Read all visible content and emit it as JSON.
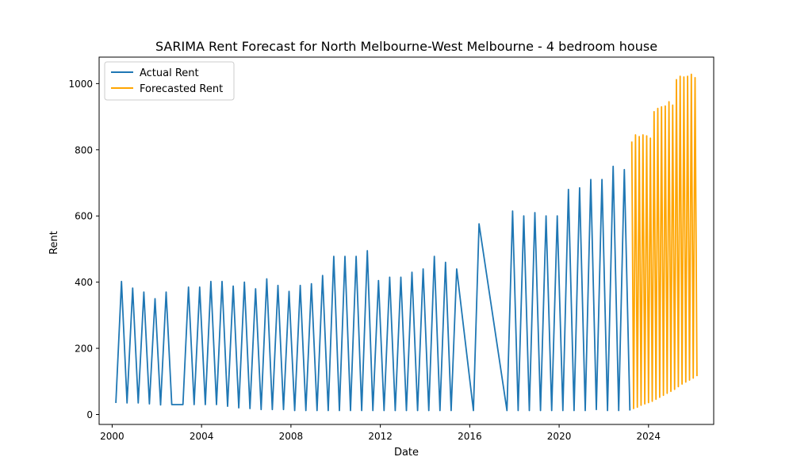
{
  "chart_data": {
    "type": "line",
    "title": "SARIMA Rent Forecast for North Melbourne-West Melbourne - 4 bedroom house",
    "xlabel": "Date",
    "ylabel": "Rent",
    "x_axis_type": "date",
    "xlim": [
      "1999-06-01",
      "2026-12-01"
    ],
    "ylim": [
      -30,
      1080
    ],
    "xticks": [
      "2000",
      "2004",
      "2008",
      "2012",
      "2016",
      "2020",
      "2024"
    ],
    "yticks": [
      0,
      200,
      400,
      600,
      800,
      1000
    ],
    "grid": false,
    "legend_position": "top-left",
    "series": [
      {
        "name": "Actual Rent",
        "color": "#1f77b4",
        "points": [
          [
            "2000-03-01",
            35
          ],
          [
            "2000-06-01",
            402
          ],
          [
            "2000-09-01",
            35
          ],
          [
            "2000-12-01",
            382
          ],
          [
            "2001-03-01",
            35
          ],
          [
            "2001-06-01",
            370
          ],
          [
            "2001-09-01",
            32
          ],
          [
            "2001-12-01",
            350
          ],
          [
            "2002-03-01",
            29
          ],
          [
            "2002-06-01",
            370
          ],
          [
            "2002-09-01",
            30
          ],
          [
            "2002-12-01",
            30
          ],
          [
            "2003-03-01",
            30
          ],
          [
            "2003-06-01",
            385
          ],
          [
            "2003-09-01",
            30
          ],
          [
            "2003-12-01",
            385
          ],
          [
            "2004-03-01",
            30
          ],
          [
            "2004-06-01",
            402
          ],
          [
            "2004-09-01",
            30
          ],
          [
            "2004-12-01",
            402
          ],
          [
            "2005-03-01",
            25
          ],
          [
            "2005-06-01",
            388
          ],
          [
            "2005-09-01",
            20
          ],
          [
            "2005-12-01",
            400
          ],
          [
            "2006-03-01",
            18
          ],
          [
            "2006-06-01",
            380
          ],
          [
            "2006-09-01",
            15
          ],
          [
            "2006-12-01",
            410
          ],
          [
            "2007-03-01",
            15
          ],
          [
            "2007-06-01",
            390
          ],
          [
            "2007-09-01",
            15
          ],
          [
            "2007-12-01",
            372
          ],
          [
            "2008-03-01",
            12
          ],
          [
            "2008-06-01",
            390
          ],
          [
            "2008-09-01",
            12
          ],
          [
            "2008-12-01",
            395
          ],
          [
            "2009-03-01",
            12
          ],
          [
            "2009-06-01",
            420
          ],
          [
            "2009-09-01",
            12
          ],
          [
            "2009-12-01",
            478
          ],
          [
            "2010-03-01",
            12
          ],
          [
            "2010-06-01",
            478
          ],
          [
            "2010-09-01",
            12
          ],
          [
            "2010-12-01",
            478
          ],
          [
            "2011-03-01",
            12
          ],
          [
            "2011-06-01",
            495
          ],
          [
            "2011-09-01",
            12
          ],
          [
            "2011-12-01",
            405
          ],
          [
            "2012-03-01",
            12
          ],
          [
            "2012-06-01",
            415
          ],
          [
            "2012-09-01",
            12
          ],
          [
            "2012-12-01",
            415
          ],
          [
            "2013-03-01",
            12
          ],
          [
            "2013-06-01",
            430
          ],
          [
            "2013-09-01",
            12
          ],
          [
            "2013-12-01",
            440
          ],
          [
            "2014-03-01",
            12
          ],
          [
            "2014-06-01",
            478
          ],
          [
            "2014-09-01",
            12
          ],
          [
            "2014-12-01",
            460
          ],
          [
            "2015-03-01",
            12
          ],
          [
            "2015-06-01",
            440
          ],
          [
            "2016-03-01",
            12
          ],
          [
            "2016-06-01",
            576
          ],
          [
            "2017-09-01",
            12
          ],
          [
            "2017-12-01",
            615
          ],
          [
            "2018-03-01",
            12
          ],
          [
            "2018-06-01",
            600
          ],
          [
            "2018-09-01",
            12
          ],
          [
            "2018-12-01",
            610
          ],
          [
            "2019-03-01",
            12
          ],
          [
            "2019-06-01",
            600
          ],
          [
            "2019-09-01",
            12
          ],
          [
            "2019-12-01",
            600
          ],
          [
            "2020-03-01",
            12
          ],
          [
            "2020-06-01",
            680
          ],
          [
            "2020-09-01",
            12
          ],
          [
            "2020-12-01",
            685
          ],
          [
            "2021-03-01",
            12
          ],
          [
            "2021-06-01",
            710
          ],
          [
            "2021-09-01",
            15
          ],
          [
            "2021-12-01",
            710
          ],
          [
            "2022-03-01",
            12
          ],
          [
            "2022-06-01",
            750
          ],
          [
            "2022-09-01",
            12
          ],
          [
            "2022-12-01",
            740
          ],
          [
            "2023-03-01",
            12
          ]
        ]
      },
      {
        "name": "Forecasted Rent",
        "color": "#ffa500",
        "points": [
          [
            "2023-04-01",
            825
          ],
          [
            "2023-05-01",
            18
          ],
          [
            "2023-06-01",
            845
          ],
          [
            "2023-07-01",
            22
          ],
          [
            "2023-08-01",
            840
          ],
          [
            "2023-09-01",
            28
          ],
          [
            "2023-10-01",
            845
          ],
          [
            "2023-11-01",
            32
          ],
          [
            "2023-12-01",
            842
          ],
          [
            "2024-01-01",
            36
          ],
          [
            "2024-02-01",
            835
          ],
          [
            "2024-03-01",
            40
          ],
          [
            "2024-04-01",
            915
          ],
          [
            "2024-05-01",
            46
          ],
          [
            "2024-06-01",
            925
          ],
          [
            "2024-07-01",
            52
          ],
          [
            "2024-08-01",
            930
          ],
          [
            "2024-09-01",
            58
          ],
          [
            "2024-10-01",
            932
          ],
          [
            "2024-11-01",
            64
          ],
          [
            "2024-12-01",
            945
          ],
          [
            "2025-01-01",
            70
          ],
          [
            "2025-02-01",
            935
          ],
          [
            "2025-03-01",
            76
          ],
          [
            "2025-04-01",
            1012
          ],
          [
            "2025-05-01",
            84
          ],
          [
            "2025-06-01",
            1022
          ],
          [
            "2025-07-01",
            92
          ],
          [
            "2025-08-01",
            1020
          ],
          [
            "2025-09-01",
            98
          ],
          [
            "2025-10-01",
            1022
          ],
          [
            "2025-11-01",
            104
          ],
          [
            "2025-12-01",
            1028
          ],
          [
            "2026-01-01",
            110
          ],
          [
            "2026-02-01",
            1018
          ],
          [
            "2026-03-01",
            116
          ]
        ]
      }
    ]
  }
}
